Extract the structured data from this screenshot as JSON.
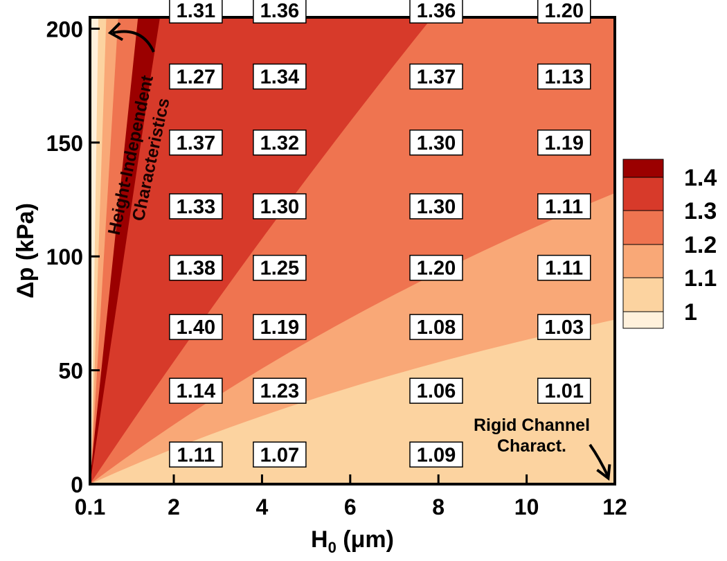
{
  "chart_data": {
    "type": "heatmap",
    "subtype": "filled-contour",
    "title": "",
    "xlabel": "H",
    "xlabel_subscript": "0",
    "xlabel_units": "(μm)",
    "ylabel": "Δp (kPa)",
    "xlim": [
      0.1,
      12
    ],
    "ylim": [
      0,
      205
    ],
    "x_ticks": [
      {
        "value": 0.1,
        "label": "0.1"
      },
      {
        "value": 2,
        "label": "2"
      },
      {
        "value": 4,
        "label": "4"
      },
      {
        "value": 6,
        "label": "6"
      },
      {
        "value": 8,
        "label": "8"
      },
      {
        "value": 10,
        "label": "10"
      },
      {
        "value": 12,
        "label": "12"
      }
    ],
    "y_ticks": [
      {
        "value": 0,
        "label": "0"
      },
      {
        "value": 50,
        "label": "50"
      },
      {
        "value": 100,
        "label": "100"
      },
      {
        "value": 150,
        "label": "150"
      },
      {
        "value": 200,
        "label": "200"
      }
    ],
    "legend": {
      "placement": "right",
      "levels": [
        {
          "label": "",
          "color": "#9b0000"
        },
        {
          "label": "1.4",
          "color": "#d73a2a"
        },
        {
          "label": "1.3",
          "color": "#ef7450"
        },
        {
          "label": "1.2",
          "color": "#f9a877"
        },
        {
          "label": "1.1",
          "color": "#fcd3a0"
        },
        {
          "label": "1",
          "color": "#fff1dc"
        }
      ]
    },
    "contour_boundaries": [
      {
        "level": 1.4,
        "slope_kpa_per_um": 130,
        "curvature": 0.0
      },
      {
        "level": 1.3,
        "slope_kpa_per_um": 29,
        "curvature": 0.15
      },
      {
        "level": 1.2,
        "slope_kpa_per_um": 14.5,
        "curvature": 0.35
      },
      {
        "level": 1.1,
        "slope_kpa_per_um": 8.8,
        "curvature": 0.45
      },
      {
        "level": 1.0,
        "slope_kpa_per_um": 4.0,
        "curvature": 0.5
      }
    ],
    "edge_bands": {
      "note": "thin bands of lower levels at the far left (x ~ 0.1)",
      "top_x_values": [
        0.1,
        0.28,
        0.55,
        1.0
      ]
    },
    "data_labels": [
      {
        "x": 2.5,
        "y": 208,
        "value": "1.31"
      },
      {
        "x": 4.4,
        "y": 208,
        "value": "1.36"
      },
      {
        "x": 7.95,
        "y": 208,
        "value": "1.36"
      },
      {
        "x": 10.85,
        "y": 208,
        "value": "1.20"
      },
      {
        "x": 2.5,
        "y": 179,
        "value": "1.27"
      },
      {
        "x": 4.4,
        "y": 179,
        "value": "1.34"
      },
      {
        "x": 7.95,
        "y": 179,
        "value": "1.37"
      },
      {
        "x": 10.85,
        "y": 179,
        "value": "1.13"
      },
      {
        "x": 2.5,
        "y": 150,
        "value": "1.37"
      },
      {
        "x": 4.4,
        "y": 150,
        "value": "1.32"
      },
      {
        "x": 7.95,
        "y": 150,
        "value": "1.30"
      },
      {
        "x": 10.85,
        "y": 150,
        "value": "1.19"
      },
      {
        "x": 2.5,
        "y": 122,
        "value": "1.33"
      },
      {
        "x": 4.4,
        "y": 122,
        "value": "1.30"
      },
      {
        "x": 7.95,
        "y": 122,
        "value": "1.30"
      },
      {
        "x": 10.85,
        "y": 122,
        "value": "1.11"
      },
      {
        "x": 2.5,
        "y": 95,
        "value": "1.38"
      },
      {
        "x": 4.4,
        "y": 95,
        "value": "1.25"
      },
      {
        "x": 7.95,
        "y": 95,
        "value": "1.20"
      },
      {
        "x": 10.85,
        "y": 95,
        "value": "1.11"
      },
      {
        "x": 2.5,
        "y": 69,
        "value": "1.40"
      },
      {
        "x": 4.4,
        "y": 69,
        "value": "1.19"
      },
      {
        "x": 7.95,
        "y": 69,
        "value": "1.08"
      },
      {
        "x": 10.85,
        "y": 69,
        "value": "1.03"
      },
      {
        "x": 2.5,
        "y": 41,
        "value": "1.14"
      },
      {
        "x": 4.4,
        "y": 41,
        "value": "1.23"
      },
      {
        "x": 7.95,
        "y": 41,
        "value": "1.06"
      },
      {
        "x": 10.85,
        "y": 41,
        "value": "1.01"
      },
      {
        "x": 2.5,
        "y": 13,
        "value": "1.11"
      },
      {
        "x": 4.4,
        "y": 13,
        "value": "1.07"
      },
      {
        "x": 7.95,
        "y": 13,
        "value": "1.09"
      }
    ],
    "annotations": [
      {
        "id": "height-independent",
        "lines": [
          "Height-Independent",
          "Characteristics"
        ],
        "arrow_tip": [
          0.4,
          200
        ]
      },
      {
        "id": "rigid-channel",
        "lines": [
          "Rigid Channel",
          "Charact."
        ],
        "arrow_tip": [
          11.85,
          2
        ]
      }
    ]
  }
}
